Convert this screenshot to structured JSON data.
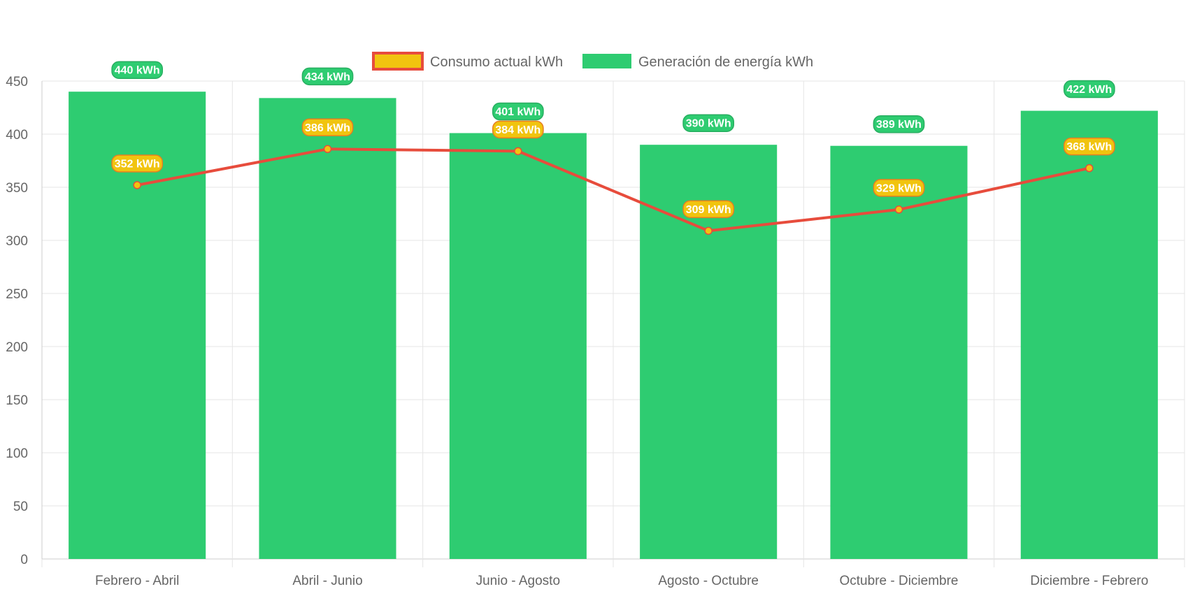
{
  "chart_data": {
    "type": "bar",
    "categories": [
      "Febrero - Abril",
      "Abril - Junio",
      "Junio - Agosto",
      "Agosto - Octubre",
      "Octubre - Diciembre",
      "Diciembre - Febrero"
    ],
    "series": [
      {
        "name": "Consumo actual kWh",
        "type": "line",
        "values": [
          352,
          386,
          384,
          309,
          329,
          368
        ],
        "label_suffix": " kWh",
        "color": "#e74c3c",
        "fill_color": "#f1c40f"
      },
      {
        "name": "Generación de energía kWh",
        "type": "bar",
        "values": [
          440,
          434,
          401,
          390,
          389,
          422
        ],
        "label_suffix": " kWh",
        "color": "#2ecc71",
        "label_border_color": "#27ae60"
      }
    ],
    "yticks": [
      0,
      50,
      100,
      150,
      200,
      250,
      300,
      350,
      400,
      450
    ],
    "ylim": [
      0,
      450
    ],
    "grid": true,
    "legend_position": "top-center",
    "title": "",
    "xlabel": "",
    "ylabel": ""
  }
}
